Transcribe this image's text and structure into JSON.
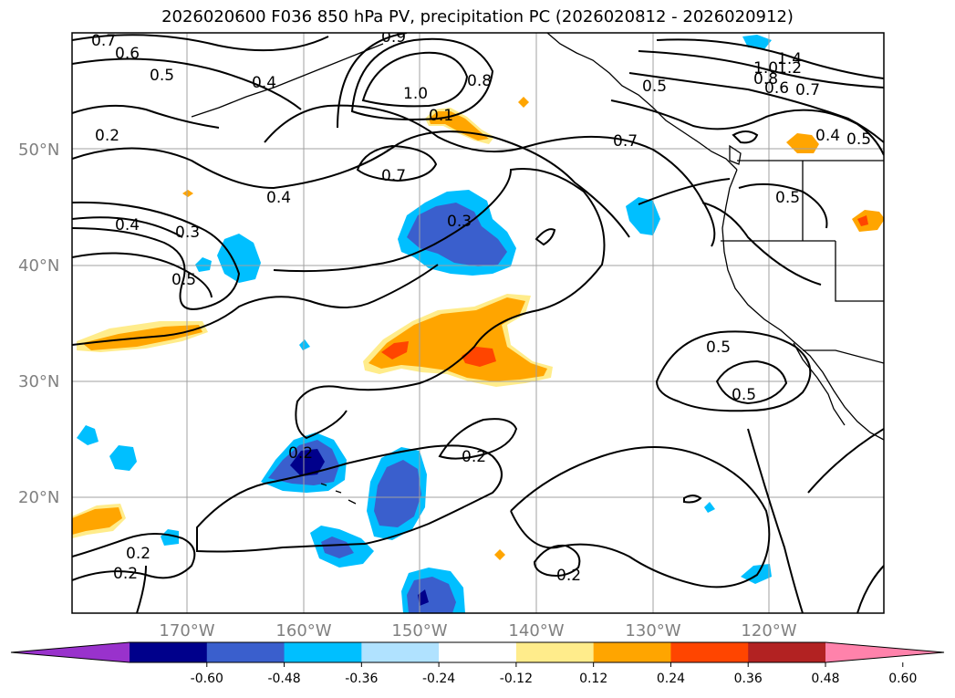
{
  "title": "2026020600 F036 850 hPa PV, precipitation PC (2026020812 - 2026020912)",
  "lat_labels": [
    "50°N",
    "40°N",
    "30°N",
    "20°N"
  ],
  "lon_labels": [
    "170°W",
    "160°W",
    "150°W",
    "140°W",
    "130°W",
    "120°W"
  ],
  "colorbar": {
    "ticks": [
      "-0.60",
      "-0.48",
      "-0.36",
      "-0.24",
      "-0.12",
      "0.12",
      "0.24",
      "0.36",
      "0.48",
      "0.60"
    ],
    "colors": [
      "#9932cc",
      "#00008b",
      "#3a5fcd",
      "#00bfff",
      "#b0e2ff",
      "#ffffff",
      "#ffec8b",
      "#ffa500",
      "#ff4500",
      "#b22222",
      "#ff82ab"
    ]
  },
  "shading_colors": {
    "pos1": "#ffec8b",
    "pos2": "#ffa500",
    "pos3": "#ff4500",
    "neg1": "#b0e2ff",
    "neg2": "#00bfff",
    "neg3": "#3a5fcd",
    "neg4": "#00008b"
  },
  "contour_labels": [
    "0.7",
    "0.6",
    "0.5",
    "0.4",
    "0.2",
    "0.9",
    "1.0",
    "0.8",
    "0.1",
    "0.7",
    "0.5",
    "0.4",
    "0.3",
    "0.5",
    "0.7",
    "0.5",
    "1.4",
    "1.0",
    "1.2",
    "0.8",
    "0.6",
    "0.7",
    "0.4",
    "0.5",
    "0.3",
    "0.4",
    "0.5",
    "0.2",
    "0.2",
    "0.2",
    "0.2",
    "0.2",
    "0.5"
  ]
}
